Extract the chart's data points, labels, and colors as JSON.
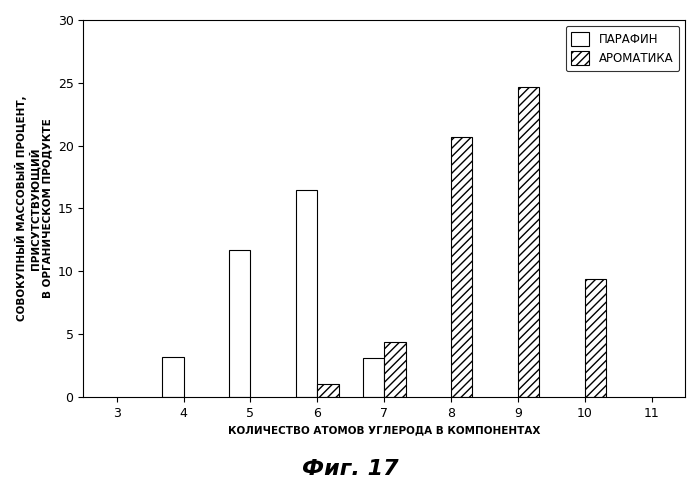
{
  "carbon_numbers": [
    3,
    4,
    5,
    6,
    7,
    8,
    9,
    10,
    11
  ],
  "paraffin": {
    "4": 3.2,
    "5": 11.7,
    "6": 16.5,
    "7": 3.1
  },
  "aromatic": {
    "6": 1.0,
    "7": 4.4,
    "8": 20.7,
    "9": 24.7,
    "10": 9.4
  },
  "xlim": [
    2.5,
    11.5
  ],
  "ylim": [
    0,
    30
  ],
  "yticks": [
    0,
    5,
    10,
    15,
    20,
    25,
    30
  ],
  "xticks": [
    3,
    4,
    5,
    6,
    7,
    8,
    9,
    10,
    11
  ],
  "xlabel": "КОЛИЧЕСТВО АТОМОВ УГЛЕРОДА В КОМПОНЕНТАХ",
  "ylabel": "СОВОКУПНЫЙ МАССОВЫЙ ПРОЦЕНТ,\nПРИСУТСТВУЮЩИЙ\nВ ОРГАНИЧЕСКОМ ПРОДУКТЕ",
  "legend_paraffin": "ПАРАФИН",
  "legend_aromatic": "АРОМАТИКА",
  "figure_caption": "Фиг. 17",
  "bar_width": 0.32,
  "paraffin_color": "#ffffff",
  "paraffin_edge": "#000000",
  "aromatic_hatch": "////",
  "aromatic_color": "#ffffff",
  "aromatic_edge": "#000000",
  "background_color": "#ffffff",
  "plot_bg_color": "#ffffff"
}
